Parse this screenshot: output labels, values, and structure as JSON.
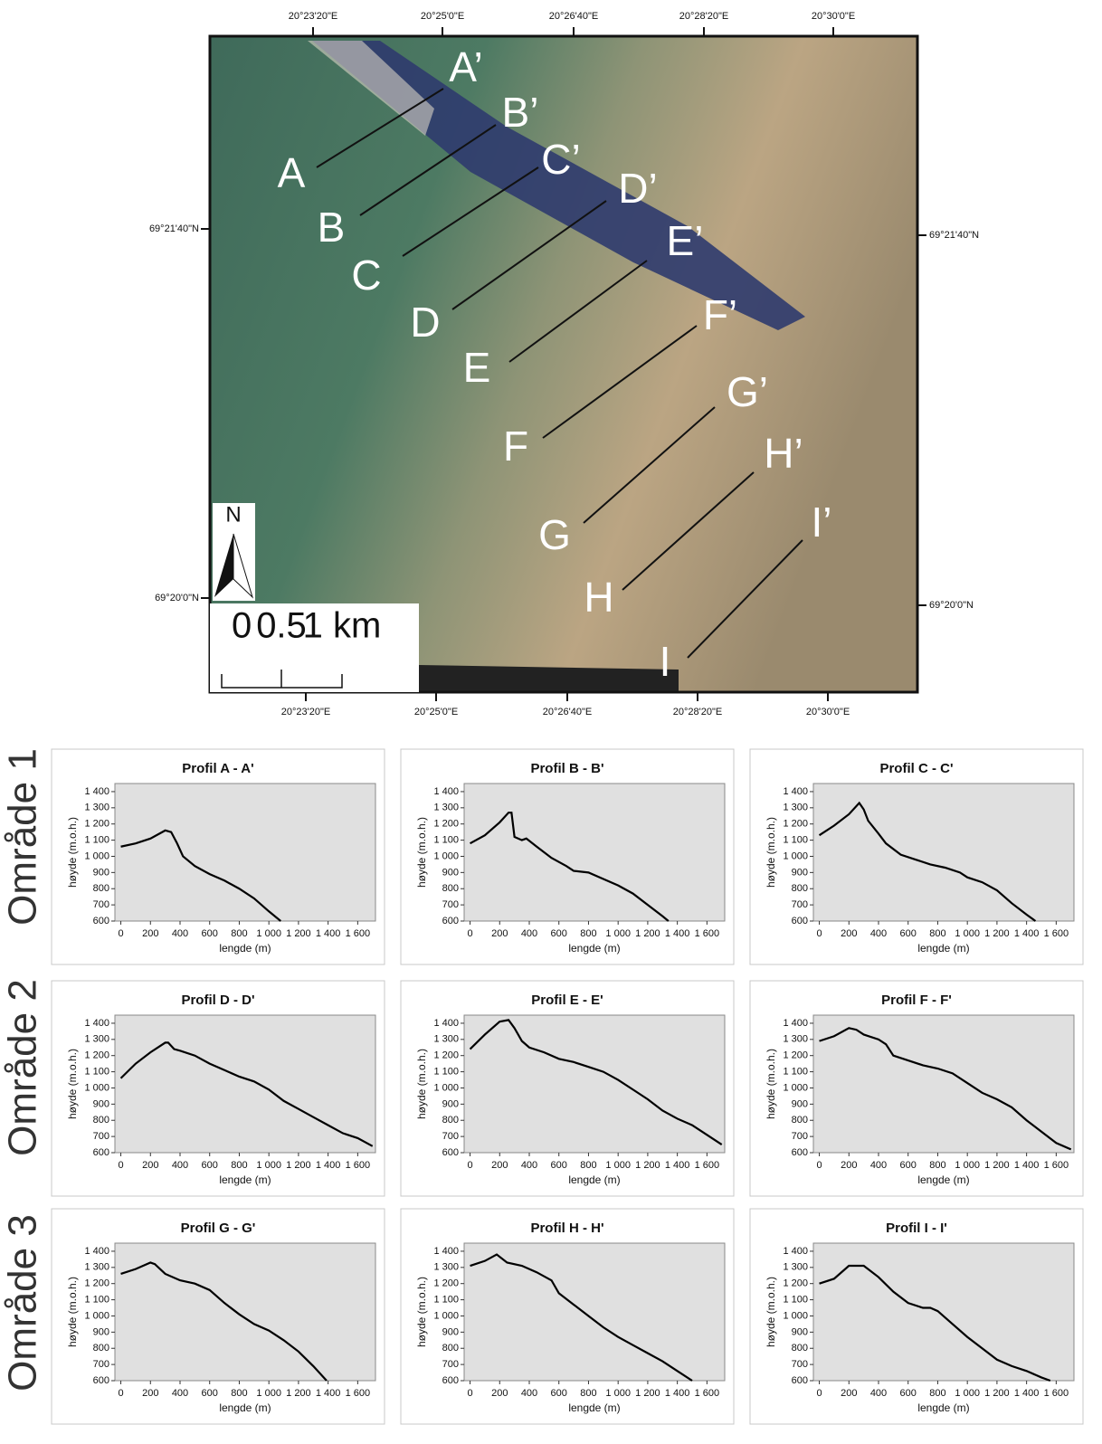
{
  "map": {
    "coords_top": [
      "20°23'20\"E",
      "20°25'0\"E",
      "20°26'40\"E",
      "20°28'20\"E",
      "20°30'0\"E"
    ],
    "coords_bottom": [
      "20°23'20\"E",
      "20°25'0\"E",
      "20°26'40\"E",
      "20°28'20\"E",
      "20°30'0\"E"
    ],
    "coords_left": [
      "69°21'40\"N",
      "69°20'0\"N"
    ],
    "coords_right": [
      "69°21'40\"N",
      "69°20'0\"N"
    ],
    "profiles": [
      {
        "start": "A",
        "end": "A’"
      },
      {
        "start": "B",
        "end": "B’"
      },
      {
        "start": "C",
        "end": "C’"
      },
      {
        "start": "D",
        "end": "D’"
      },
      {
        "start": "E",
        "end": "E’"
      },
      {
        "start": "F",
        "end": "F’"
      },
      {
        "start": "G",
        "end": "G’"
      },
      {
        "start": "H",
        "end": "H’"
      },
      {
        "start": "I",
        "end": "I’"
      }
    ],
    "north": "N",
    "scale": [
      "0",
      "0.5",
      "1 km"
    ]
  },
  "areas": [
    "Område 1",
    "Område 2",
    "Område 3"
  ],
  "chart_data": [
    {
      "type": "line",
      "title": "Profil A - A'",
      "xlabel": "lengde (m)",
      "ylabel": "høyde (m.o.h.)",
      "color": "#000000",
      "x": [
        0,
        100,
        200,
        300,
        340,
        380,
        420,
        500,
        600,
        700,
        800,
        900,
        1000,
        1080
      ],
      "values": [
        1060,
        1080,
        1110,
        1160,
        1150,
        1080,
        1000,
        940,
        890,
        850,
        800,
        740,
        660,
        600
      ],
      "xlim": [
        -40,
        1720
      ],
      "ylim": [
        600,
        1450
      ],
      "xticks": [
        0,
        200,
        400,
        600,
        800,
        {
          "value": 1000,
          "label": "1 000"
        },
        {
          "value": 1200,
          "label": "1 200"
        },
        {
          "value": 1400,
          "label": "1 400"
        },
        {
          "value": 1600,
          "label": "1 600"
        }
      ],
      "yticks": [
        600,
        700,
        800,
        900,
        {
          "value": 1000,
          "label": "1 000"
        },
        {
          "value": 1100,
          "label": "1 100"
        },
        {
          "value": 1200,
          "label": "1 200"
        },
        {
          "value": 1300,
          "label": "1 300"
        },
        {
          "value": 1400,
          "label": "1 400"
        }
      ]
    },
    {
      "type": "line",
      "title": "Profil B - B'",
      "xlabel": "lengde (m)",
      "ylabel": "høyde (m.o.h.)",
      "color": "#000000",
      "x": [
        0,
        100,
        200,
        260,
        280,
        300,
        350,
        380,
        450,
        550,
        650,
        700,
        800,
        900,
        1000,
        1100,
        1200,
        1300,
        1340
      ],
      "values": [
        1080,
        1130,
        1210,
        1270,
        1270,
        1120,
        1100,
        1110,
        1060,
        990,
        940,
        910,
        900,
        860,
        820,
        770,
        700,
        630,
        600
      ],
      "xlim": [
        -40,
        1720
      ],
      "ylim": [
        600,
        1450
      ],
      "xticks": [
        0,
        200,
        400,
        600,
        800,
        {
          "value": 1000,
          "label": "1 000"
        },
        {
          "value": 1200,
          "label": "1 200"
        },
        {
          "value": 1400,
          "label": "1 400"
        },
        {
          "value": 1600,
          "label": "1 600"
        }
      ],
      "yticks": [
        600,
        700,
        800,
        900,
        {
          "value": 1000,
          "label": "1 000"
        },
        {
          "value": 1100,
          "label": "1 100"
        },
        {
          "value": 1200,
          "label": "1 200"
        },
        {
          "value": 1300,
          "label": "1 300"
        },
        {
          "value": 1400,
          "label": "1 400"
        }
      ]
    },
    {
      "type": "line",
      "title": "Profil C - C'",
      "xlabel": "lengde (m)",
      "ylabel": "høyde (m.o.h.)",
      "color": "#000000",
      "x": [
        0,
        100,
        200,
        270,
        300,
        330,
        400,
        450,
        550,
        650,
        750,
        850,
        950,
        1000,
        1100,
        1200,
        1300,
        1400,
        1460
      ],
      "values": [
        1130,
        1190,
        1260,
        1330,
        1290,
        1220,
        1140,
        1080,
        1010,
        980,
        950,
        930,
        900,
        870,
        840,
        790,
        710,
        640,
        600
      ],
      "xlim": [
        -40,
        1720
      ],
      "ylim": [
        600,
        1450
      ],
      "xticks": [
        0,
        200,
        400,
        600,
        800,
        {
          "value": 1000,
          "label": "1 000"
        },
        {
          "value": 1200,
          "label": "1 200"
        },
        {
          "value": 1400,
          "label": "1 400"
        },
        {
          "value": 1600,
          "label": "1 600"
        }
      ],
      "yticks": [
        600,
        700,
        800,
        900,
        {
          "value": 1000,
          "label": "1 000"
        },
        {
          "value": 1100,
          "label": "1 100"
        },
        {
          "value": 1200,
          "label": "1 200"
        },
        {
          "value": 1300,
          "label": "1 300"
        },
        {
          "value": 1400,
          "label": "1 400"
        }
      ]
    },
    {
      "type": "line",
      "title": "Profil D - D'",
      "xlabel": "lengde (m)",
      "ylabel": "høyde (m.o.h.)",
      "color": "#000000",
      "x": [
        0,
        100,
        200,
        300,
        320,
        360,
        400,
        500,
        600,
        700,
        800,
        900,
        1000,
        1100,
        1200,
        1300,
        1400,
        1500,
        1600,
        1700
      ],
      "values": [
        1060,
        1150,
        1220,
        1280,
        1280,
        1240,
        1230,
        1200,
        1150,
        1110,
        1070,
        1040,
        990,
        920,
        870,
        820,
        770,
        720,
        690,
        640
      ],
      "xlim": [
        -40,
        1720
      ],
      "ylim": [
        600,
        1450
      ],
      "xticks": [
        0,
        200,
        400,
        600,
        800,
        {
          "value": 1000,
          "label": "1 000"
        },
        {
          "value": 1200,
          "label": "1 200"
        },
        {
          "value": 1400,
          "label": "1 400"
        },
        {
          "value": 1600,
          "label": "1 600"
        }
      ],
      "yticks": [
        600,
        700,
        800,
        900,
        {
          "value": 1000,
          "label": "1 000"
        },
        {
          "value": 1100,
          "label": "1 100"
        },
        {
          "value": 1200,
          "label": "1 200"
        },
        {
          "value": 1300,
          "label": "1 300"
        },
        {
          "value": 1400,
          "label": "1 400"
        }
      ]
    },
    {
      "type": "line",
      "title": "Profil E - E'",
      "xlabel": "lengde (m)",
      "ylabel": "høyde (m.o.h.)",
      "color": "#000000",
      "x": [
        0,
        100,
        200,
        260,
        300,
        350,
        400,
        500,
        600,
        700,
        800,
        900,
        1000,
        1100,
        1200,
        1300,
        1400,
        1500,
        1600,
        1700
      ],
      "values": [
        1240,
        1330,
        1410,
        1420,
        1370,
        1290,
        1250,
        1220,
        1180,
        1160,
        1130,
        1100,
        1050,
        990,
        930,
        860,
        810,
        770,
        710,
        650
      ],
      "xlim": [
        -40,
        1720
      ],
      "ylim": [
        600,
        1450
      ],
      "xticks": [
        0,
        200,
        400,
        600,
        800,
        {
          "value": 1000,
          "label": "1 000"
        },
        {
          "value": 1200,
          "label": "1 200"
        },
        {
          "value": 1400,
          "label": "1 400"
        },
        {
          "value": 1600,
          "label": "1 600"
        }
      ],
      "yticks": [
        600,
        700,
        800,
        900,
        {
          "value": 1000,
          "label": "1 000"
        },
        {
          "value": 1100,
          "label": "1 100"
        },
        {
          "value": 1200,
          "label": "1 200"
        },
        {
          "value": 1300,
          "label": "1 300"
        },
        {
          "value": 1400,
          "label": "1 400"
        }
      ]
    },
    {
      "type": "line",
      "title": "Profil F - F'",
      "xlabel": "lengde (m)",
      "ylabel": "høyde (m.o.h.)",
      "color": "#000000",
      "x": [
        0,
        100,
        200,
        250,
        300,
        400,
        450,
        500,
        600,
        700,
        800,
        900,
        1000,
        1100,
        1200,
        1300,
        1400,
        1500,
        1600,
        1700
      ],
      "values": [
        1290,
        1320,
        1370,
        1360,
        1330,
        1300,
        1270,
        1200,
        1170,
        1140,
        1120,
        1090,
        1030,
        970,
        930,
        880,
        800,
        730,
        660,
        620
      ],
      "xlim": [
        -40,
        1720
      ],
      "ylim": [
        600,
        1450
      ],
      "xticks": [
        0,
        200,
        400,
        600,
        800,
        {
          "value": 1000,
          "label": "1 000"
        },
        {
          "value": 1200,
          "label": "1 200"
        },
        {
          "value": 1400,
          "label": "1 400"
        },
        {
          "value": 1600,
          "label": "1 600"
        }
      ],
      "yticks": [
        600,
        700,
        800,
        900,
        {
          "value": 1000,
          "label": "1 000"
        },
        {
          "value": 1100,
          "label": "1 100"
        },
        {
          "value": 1200,
          "label": "1 200"
        },
        {
          "value": 1300,
          "label": "1 300"
        },
        {
          "value": 1400,
          "label": "1 400"
        }
      ]
    },
    {
      "type": "line",
      "title": "Profil G - G'",
      "xlabel": "lengde (m)",
      "ylabel": "høyde (m.o.h.)",
      "color": "#000000",
      "x": [
        0,
        100,
        200,
        230,
        300,
        400,
        500,
        600,
        700,
        800,
        900,
        1000,
        1100,
        1200,
        1300,
        1390
      ],
      "values": [
        1260,
        1290,
        1330,
        1320,
        1260,
        1220,
        1200,
        1160,
        1080,
        1010,
        950,
        910,
        850,
        780,
        690,
        600
      ],
      "xlim": [
        -40,
        1720
      ],
      "ylim": [
        600,
        1450
      ],
      "xticks": [
        0,
        200,
        400,
        600,
        800,
        {
          "value": 1000,
          "label": "1 000"
        },
        {
          "value": 1200,
          "label": "1 200"
        },
        {
          "value": 1400,
          "label": "1 400"
        },
        {
          "value": 1600,
          "label": "1 600"
        }
      ],
      "yticks": [
        600,
        700,
        800,
        900,
        {
          "value": 1000,
          "label": "1 000"
        },
        {
          "value": 1100,
          "label": "1 100"
        },
        {
          "value": 1200,
          "label": "1 200"
        },
        {
          "value": 1300,
          "label": "1 300"
        },
        {
          "value": 1400,
          "label": "1 400"
        }
      ]
    },
    {
      "type": "line",
      "title": "Profil H - H'",
      "xlabel": "lengde (m)",
      "ylabel": "høyde (m.o.h.)",
      "color": "#000000",
      "x": [
        0,
        100,
        180,
        250,
        350,
        450,
        550,
        600,
        700,
        800,
        900,
        1000,
        1100,
        1200,
        1300,
        1400,
        1500
      ],
      "values": [
        1310,
        1340,
        1380,
        1330,
        1310,
        1270,
        1220,
        1140,
        1070,
        1000,
        930,
        870,
        820,
        770,
        720,
        660,
        600
      ],
      "xlim": [
        -40,
        1720
      ],
      "ylim": [
        600,
        1450
      ],
      "xticks": [
        0,
        200,
        400,
        600,
        800,
        {
          "value": 1000,
          "label": "1 000"
        },
        {
          "value": 1200,
          "label": "1 200"
        },
        {
          "value": 1400,
          "label": "1 400"
        },
        {
          "value": 1600,
          "label": "1 600"
        }
      ],
      "yticks": [
        600,
        700,
        800,
        900,
        {
          "value": 1000,
          "label": "1 000"
        },
        {
          "value": 1100,
          "label": "1 100"
        },
        {
          "value": 1200,
          "label": "1 200"
        },
        {
          "value": 1300,
          "label": "1 300"
        },
        {
          "value": 1400,
          "label": "1 400"
        }
      ]
    },
    {
      "type": "line",
      "title": "Profil I - I'",
      "xlabel": "lengde (m)",
      "ylabel": "høyde (m.o.h.)",
      "color": "#000000",
      "x": [
        0,
        100,
        200,
        300,
        400,
        500,
        600,
        700,
        750,
        800,
        900,
        1000,
        1100,
        1200,
        1300,
        1400,
        1500,
        1560
      ],
      "values": [
        1200,
        1230,
        1310,
        1310,
        1240,
        1150,
        1080,
        1050,
        1050,
        1030,
        950,
        870,
        800,
        730,
        690,
        660,
        620,
        600
      ],
      "xlim": [
        -40,
        1720
      ],
      "ylim": [
        600,
        1450
      ],
      "xticks": [
        0,
        200,
        400,
        600,
        800,
        {
          "value": 1000,
          "label": "1 000"
        },
        {
          "value": 1200,
          "label": "1 200"
        },
        {
          "value": 1400,
          "label": "1 400"
        },
        {
          "value": 1600,
          "label": "1 600"
        }
      ],
      "yticks": [
        600,
        700,
        800,
        900,
        {
          "value": 1000,
          "label": "1 000"
        },
        {
          "value": 1100,
          "label": "1 100"
        },
        {
          "value": 1200,
          "label": "1 200"
        },
        {
          "value": 1300,
          "label": "1 300"
        },
        {
          "value": 1400,
          "label": "1 400"
        }
      ]
    }
  ]
}
